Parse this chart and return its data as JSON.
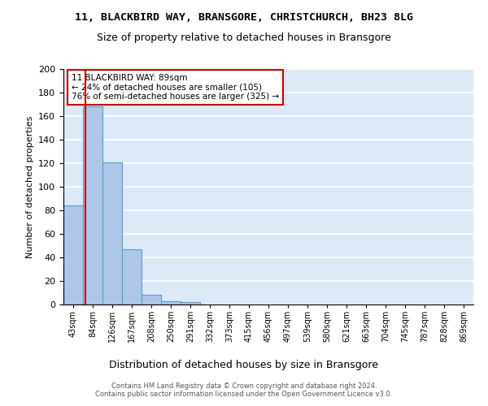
{
  "title1": "11, BLACKBIRD WAY, BRANSGORE, CHRISTCHURCH, BH23 8LG",
  "title2": "Size of property relative to detached houses in Bransgore",
  "xlabel": "Distribution of detached houses by size in Bransgore",
  "ylabel": "Number of detached properties",
  "footnote": "Contains HM Land Registry data © Crown copyright and database right 2024.\nContains public sector information licensed under the Open Government Licence v3.0.",
  "bin_labels": [
    "43sqm",
    "84sqm",
    "126sqm",
    "167sqm",
    "208sqm",
    "250sqm",
    "291sqm",
    "332sqm",
    "373sqm",
    "415sqm",
    "456sqm",
    "497sqm",
    "539sqm",
    "580sqm",
    "621sqm",
    "663sqm",
    "704sqm",
    "745sqm",
    "787sqm",
    "828sqm",
    "869sqm"
  ],
  "bar_values": [
    84,
    168,
    121,
    47,
    8,
    3,
    2,
    0,
    0,
    0,
    0,
    0,
    0,
    0,
    0,
    0,
    0,
    0,
    0,
    0,
    0
  ],
  "bar_color": "#aec6e8",
  "bar_edge_color": "#5b9bd5",
  "property_line_color": "#cc0000",
  "annotation_text": "11 BLACKBIRD WAY: 89sqm\n← 24% of detached houses are smaller (105)\n76% of semi-detached houses are larger (325) →",
  "annotation_box_color": "#ffffff",
  "annotation_box_edge_color": "#cc0000",
  "ylim": [
    0,
    200
  ],
  "yticks": [
    0,
    20,
    40,
    60,
    80,
    100,
    120,
    140,
    160,
    180,
    200
  ],
  "background_color": "#dce9f7"
}
